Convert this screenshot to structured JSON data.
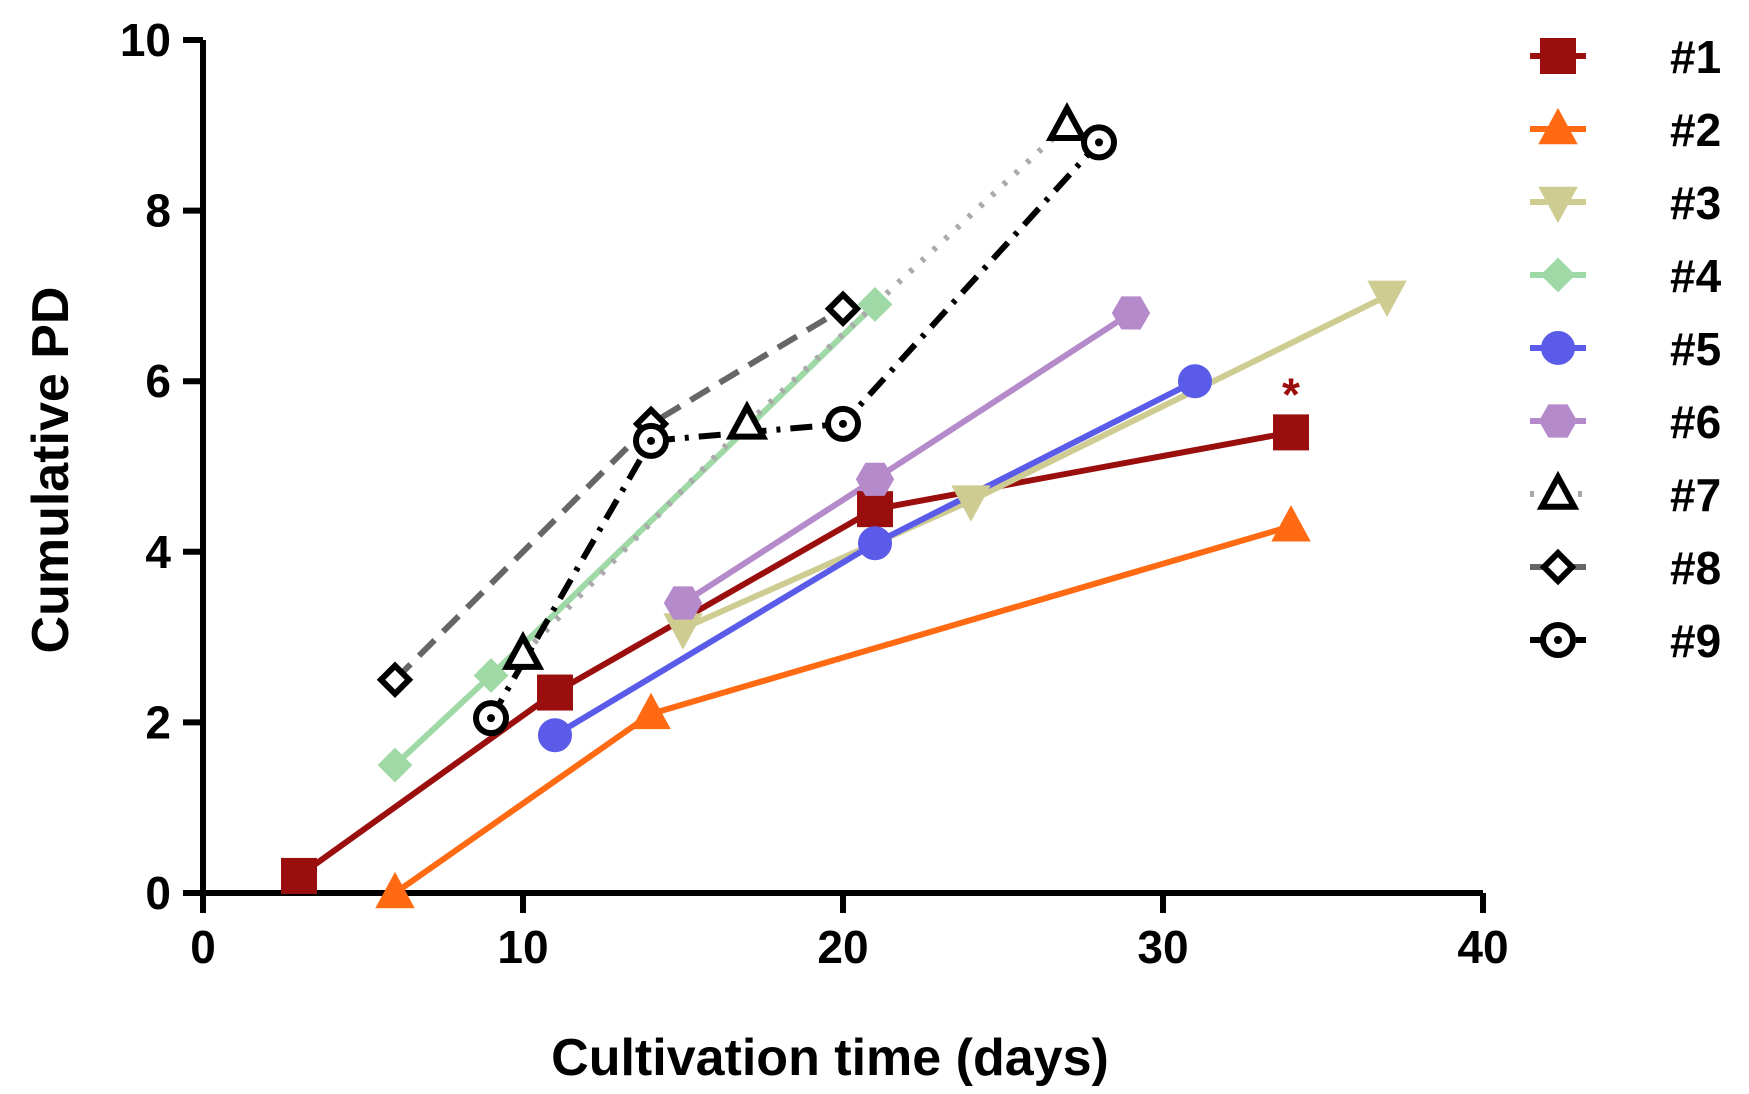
{
  "chart_data": {
    "type": "line",
    "title": "",
    "xlabel": "Cultivation time (days)",
    "ylabel": "Cumulative PD",
    "xlim": [
      0,
      40
    ],
    "ylim": [
      0,
      10
    ],
    "xticks": [
      0,
      10,
      20,
      30,
      40
    ],
    "yticks": [
      0,
      2,
      4,
      6,
      8,
      10
    ],
    "grid": false,
    "legend_position": "right",
    "series": [
      {
        "name": "#1",
        "color": "#9B0E0E",
        "marker": "square",
        "fill": "solid",
        "dash": "solid",
        "x": [
          3,
          11,
          21,
          34
        ],
        "y": [
          0.2,
          2.35,
          4.5,
          5.4
        ]
      },
      {
        "name": "#2",
        "color": "#FF6A13",
        "marker": "triangle",
        "fill": "solid",
        "dash": "solid",
        "x": [
          6,
          14,
          34
        ],
        "y": [
          0.0,
          2.1,
          4.3
        ]
      },
      {
        "name": "#3",
        "color": "#CFCC92",
        "marker": "triangle-down",
        "fill": "solid",
        "dash": "solid",
        "x": [
          15,
          24,
          37
        ],
        "y": [
          3.1,
          4.6,
          7.0
        ]
      },
      {
        "name": "#4",
        "color": "#9ED9A6",
        "marker": "diamond",
        "fill": "solid",
        "dash": "solid",
        "x": [
          6,
          9,
          21
        ],
        "y": [
          1.5,
          2.55,
          6.9
        ]
      },
      {
        "name": "#5",
        "color": "#5B5BEA",
        "marker": "circle",
        "fill": "solid",
        "dash": "solid",
        "x": [
          11,
          21,
          31
        ],
        "y": [
          1.85,
          4.1,
          6.0
        ]
      },
      {
        "name": "#6",
        "color": "#B48ACA",
        "marker": "hexagon",
        "fill": "solid",
        "dash": "solid",
        "x": [
          15,
          21,
          29
        ],
        "y": [
          3.4,
          4.85,
          6.8
        ]
      },
      {
        "name": "#7",
        "color": "#000000",
        "line_color": "#AAAAAA",
        "marker": "triangle",
        "fill": "open",
        "dash": "dot",
        "x": [
          10,
          17,
          27
        ],
        "y": [
          2.8,
          5.5,
          9.0
        ]
      },
      {
        "name": "#8",
        "color": "#000000",
        "line_color": "#666666",
        "marker": "diamond",
        "fill": "open",
        "dash": "dash",
        "x": [
          6,
          14,
          20
        ],
        "y": [
          2.5,
          5.5,
          6.85
        ]
      },
      {
        "name": "#9",
        "color": "#000000",
        "line_color": "#000000",
        "marker": "circle-dot",
        "fill": "open",
        "dash": "dashdot",
        "x": [
          9,
          14,
          20,
          28
        ],
        "y": [
          2.05,
          5.3,
          5.5,
          8.8
        ]
      }
    ],
    "annotations": [
      {
        "text": "*",
        "x": 34,
        "y": 5.4,
        "color": "#9B0E0E"
      }
    ]
  }
}
